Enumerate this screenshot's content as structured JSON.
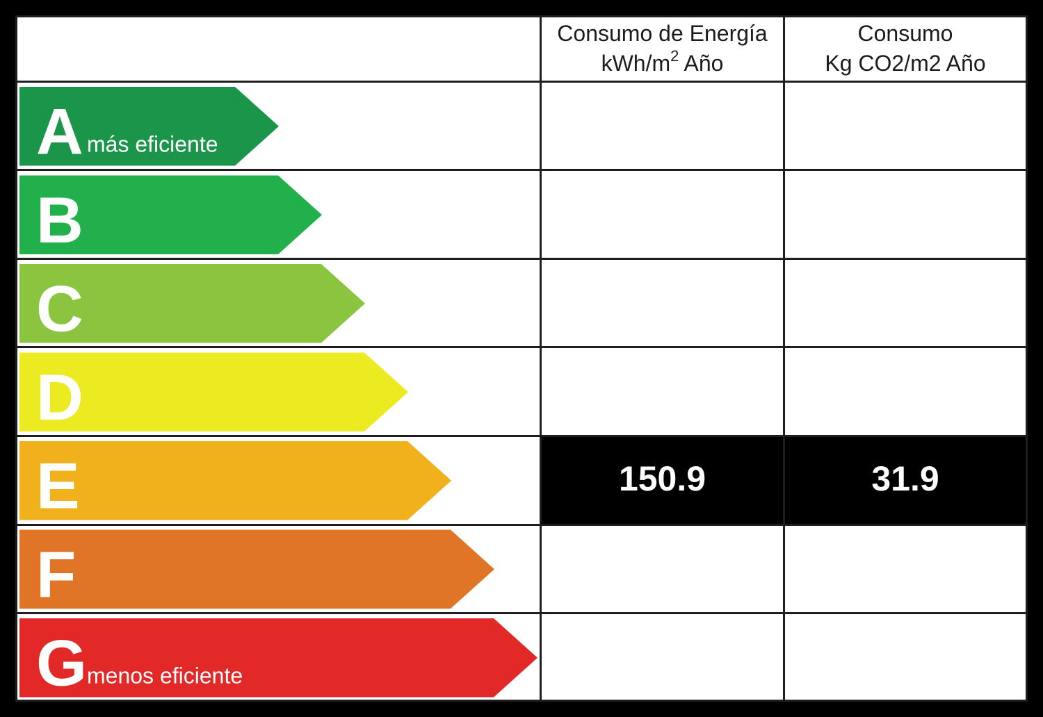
{
  "chart_data": {
    "type": "table",
    "columns": [
      "Consumo de Energía kWh/m2 Año",
      "Consumo Kg CO2/m2 Año"
    ],
    "ratings": [
      {
        "letter": "A",
        "label": "más eficiente",
        "color": "#1a9549"
      },
      {
        "letter": "B",
        "label": "",
        "color": "#21b04b"
      },
      {
        "letter": "C",
        "label": "",
        "color": "#8bc53f"
      },
      {
        "letter": "D",
        "label": "",
        "color": "#ecea20"
      },
      {
        "letter": "E",
        "label": "",
        "color": "#f0b11c"
      },
      {
        "letter": "F",
        "label": "",
        "color": "#e17527"
      },
      {
        "letter": "G",
        "label": "menos eficiente",
        "color": "#e22927"
      }
    ],
    "selected": "E",
    "values": {
      "energy": "150.9",
      "co2": "31.9"
    }
  },
  "headers": {
    "energy_line1": "Consumo de Energía",
    "energy_line2_pre": "kWh/m",
    "energy_line2_sup": "2",
    "energy_line2_post": " Año",
    "co2_line1": "Consumo",
    "co2_line2": "Kg CO2/m2 Año"
  }
}
